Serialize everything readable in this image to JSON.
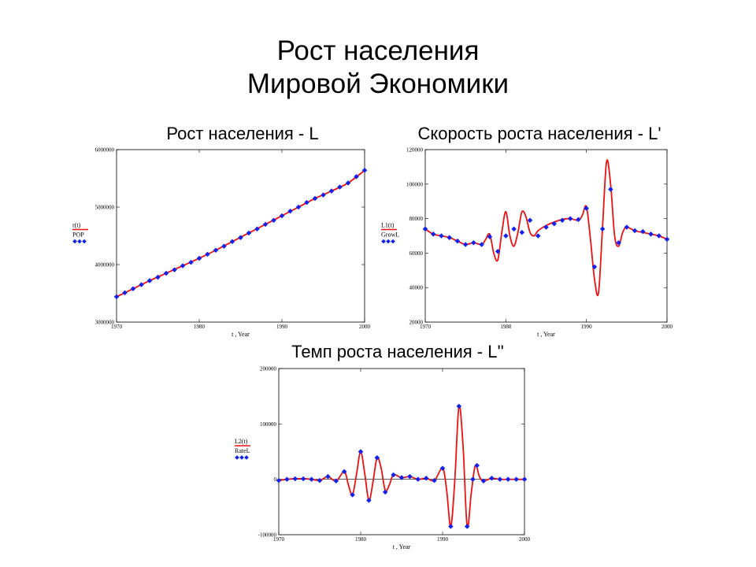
{
  "slide": {
    "title_line1": "Рост населения",
    "title_line2": "Мировой Экономики"
  },
  "colors": {
    "fit_line": "#ee1111",
    "data_points": "#1122ee",
    "axis": "#000000"
  },
  "chart_data": [
    {
      "id": "population",
      "type": "line",
      "title": "Рост населения - L",
      "xlabel": "t , Year",
      "xlim": [
        1970,
        2000
      ],
      "ylim": [
        3000000,
        6000000
      ],
      "xticks": [
        1970,
        1980,
        1990,
        2000
      ],
      "yticks": [
        3000000,
        4000000,
        5000000,
        6000000
      ],
      "legend": {
        "placement": "left",
        "line_label": "r(t)",
        "points_label": "POP"
      },
      "series": [
        {
          "kind": "line",
          "x": [
            1970,
            1972,
            1974,
            1976,
            1978,
            1980,
            1982,
            1984,
            1986,
            1988,
            1990,
            1992,
            1994,
            1996,
            1998,
            2000
          ],
          "y": [
            3440000,
            3580000,
            3720000,
            3850000,
            3980000,
            4110000,
            4250000,
            4400000,
            4550000,
            4700000,
            4850000,
            5000000,
            5150000,
            5280000,
            5420000,
            5640000
          ]
        },
        {
          "kind": "points",
          "x": [
            1970,
            1971,
            1972,
            1973,
            1974,
            1975,
            1976,
            1977,
            1978,
            1979,
            1980,
            1981,
            1982,
            1983,
            1984,
            1985,
            1986,
            1987,
            1988,
            1989,
            1990,
            1991,
            1992,
            1993,
            1994,
            1995,
            1996,
            1997,
            1998,
            1999,
            2000
          ],
          "y": [
            3440000,
            3510000,
            3580000,
            3650000,
            3720000,
            3780000,
            3850000,
            3910000,
            3980000,
            4040000,
            4110000,
            4180000,
            4250000,
            4320000,
            4400000,
            4470000,
            4550000,
            4620000,
            4700000,
            4770000,
            4850000,
            4930000,
            5000000,
            5080000,
            5150000,
            5210000,
            5280000,
            5350000,
            5420000,
            5530000,
            5640000
          ]
        }
      ]
    },
    {
      "id": "growth-speed",
      "type": "line",
      "title": "Скорость роста населения - L'",
      "xlabel": "t , Year",
      "xlim": [
        1970,
        2000
      ],
      "ylim": [
        20000,
        120000
      ],
      "xticks": [
        1970,
        1980,
        1990,
        2000
      ],
      "yticks": [
        20000,
        40000,
        60000,
        80000,
        100000,
        120000
      ],
      "legend": {
        "placement": "left",
        "line_label": "L1(t)",
        "points_label": "GrowL"
      },
      "series": [
        {
          "kind": "line",
          "x": [
            1970,
            1971,
            1972,
            1973,
            1974,
            1975,
            1976,
            1977,
            1977.5,
            1978,
            1978.5,
            1979,
            1979.5,
            1980,
            1980.5,
            1981,
            1981.5,
            1982,
            1982.5,
            1983,
            1983.5,
            1984,
            1985,
            1986,
            1987,
            1988,
            1989,
            1989.5,
            1990,
            1990.5,
            1991,
            1991.5,
            1992,
            1992.5,
            1993,
            1993.5,
            1994,
            1994.5,
            1995,
            1996,
            1997,
            1998,
            1999,
            2000
          ],
          "y": [
            74000,
            71000,
            70000,
            69000,
            67000,
            65000,
            66000,
            65000,
            68000,
            71000,
            60000,
            56000,
            72000,
            84000,
            70000,
            64000,
            72000,
            84000,
            81000,
            72000,
            70000,
            73000,
            76000,
            78000,
            79500,
            80000,
            79000,
            82000,
            87000,
            68000,
            45000,
            37000,
            75000,
            113000,
            100000,
            70000,
            64000,
            72000,
            75000,
            73000,
            72000,
            71000,
            70000,
            68000
          ]
        },
        {
          "kind": "points",
          "x": [
            1970,
            1971,
            1972,
            1973,
            1974,
            1975,
            1976,
            1977,
            1978,
            1979,
            1980,
            1981,
            1982,
            1983,
            1984,
            1985,
            1986,
            1987,
            1988,
            1989,
            1990,
            1991,
            1992,
            1993,
            1994,
            1995,
            1996,
            1997,
            1998,
            1999,
            2000
          ],
          "y": [
            74000,
            71000,
            70000,
            69000,
            67000,
            65000,
            66000,
            65000,
            69500,
            61000,
            70000,
            74000,
            72000,
            79000,
            70000,
            75000,
            77000,
            79000,
            80000,
            79500,
            86000,
            52000,
            74000,
            97000,
            66000,
            75000,
            73000,
            72500,
            71000,
            70000,
            68000
          ]
        }
      ]
    },
    {
      "id": "growth-rate",
      "type": "line",
      "title": "Темп роста населения - L''",
      "xlabel": "t , Year",
      "xlim": [
        1970,
        2000
      ],
      "ylim": [
        -100000,
        200000
      ],
      "xticks": [
        1970,
        1980,
        1990,
        2000
      ],
      "yticks": [
        -100000,
        0,
        100000,
        200000
      ],
      "legend": {
        "placement": "left",
        "line_label": "L2(t)",
        "points_label": "RateL"
      },
      "series": [
        {
          "kind": "line",
          "x": [
            1970,
            1971,
            1972,
            1973,
            1974,
            1975,
            1976,
            1977,
            1978,
            1978.5,
            1979,
            1979.5,
            1980,
            1980.5,
            1981,
            1981.5,
            1982,
            1982.5,
            1983,
            1983.5,
            1984,
            1985,
            1986,
            1987,
            1988,
            1989,
            1990,
            1990.5,
            1991,
            1991.5,
            1992,
            1992.5,
            1993,
            1993.5,
            1994,
            1994.5,
            1995,
            1996,
            1997,
            1998,
            1999,
            2000
          ],
          "y": [
            -2000,
            0,
            1000,
            1000,
            0,
            -2000,
            5000,
            -3000,
            14000,
            -10000,
            -28000,
            10000,
            50000,
            10000,
            -38000,
            -5000,
            39000,
            20000,
            -20000,
            -10000,
            8000,
            3000,
            5000,
            0,
            2000,
            -2000,
            20000,
            -20000,
            -85000,
            0,
            132000,
            60000,
            -85000,
            -25000,
            25000,
            5000,
            -3000,
            2000,
            0,
            0,
            0,
            0
          ]
        },
        {
          "kind": "points",
          "x": [
            1970,
            1971,
            1972,
            1973,
            1974,
            1975,
            1976,
            1977,
            1978,
            1979,
            1980,
            1981,
            1982,
            1983,
            1984,
            1985,
            1986,
            1987,
            1988,
            1989,
            1990,
            1991,
            1992,
            1993,
            1993.7,
            1994.2,
            1995,
            1996,
            1997,
            1998,
            1999,
            2000
          ],
          "y": [
            -2000,
            0,
            1000,
            1000,
            0,
            -2000,
            5000,
            -3000,
            14000,
            -28000,
            50000,
            -38000,
            39000,
            -23000,
            8000,
            3000,
            5000,
            0,
            2000,
            -2000,
            20000,
            -85000,
            132000,
            -85000,
            0,
            25000,
            -3000,
            2000,
            0,
            0,
            0,
            0
          ]
        }
      ]
    }
  ]
}
